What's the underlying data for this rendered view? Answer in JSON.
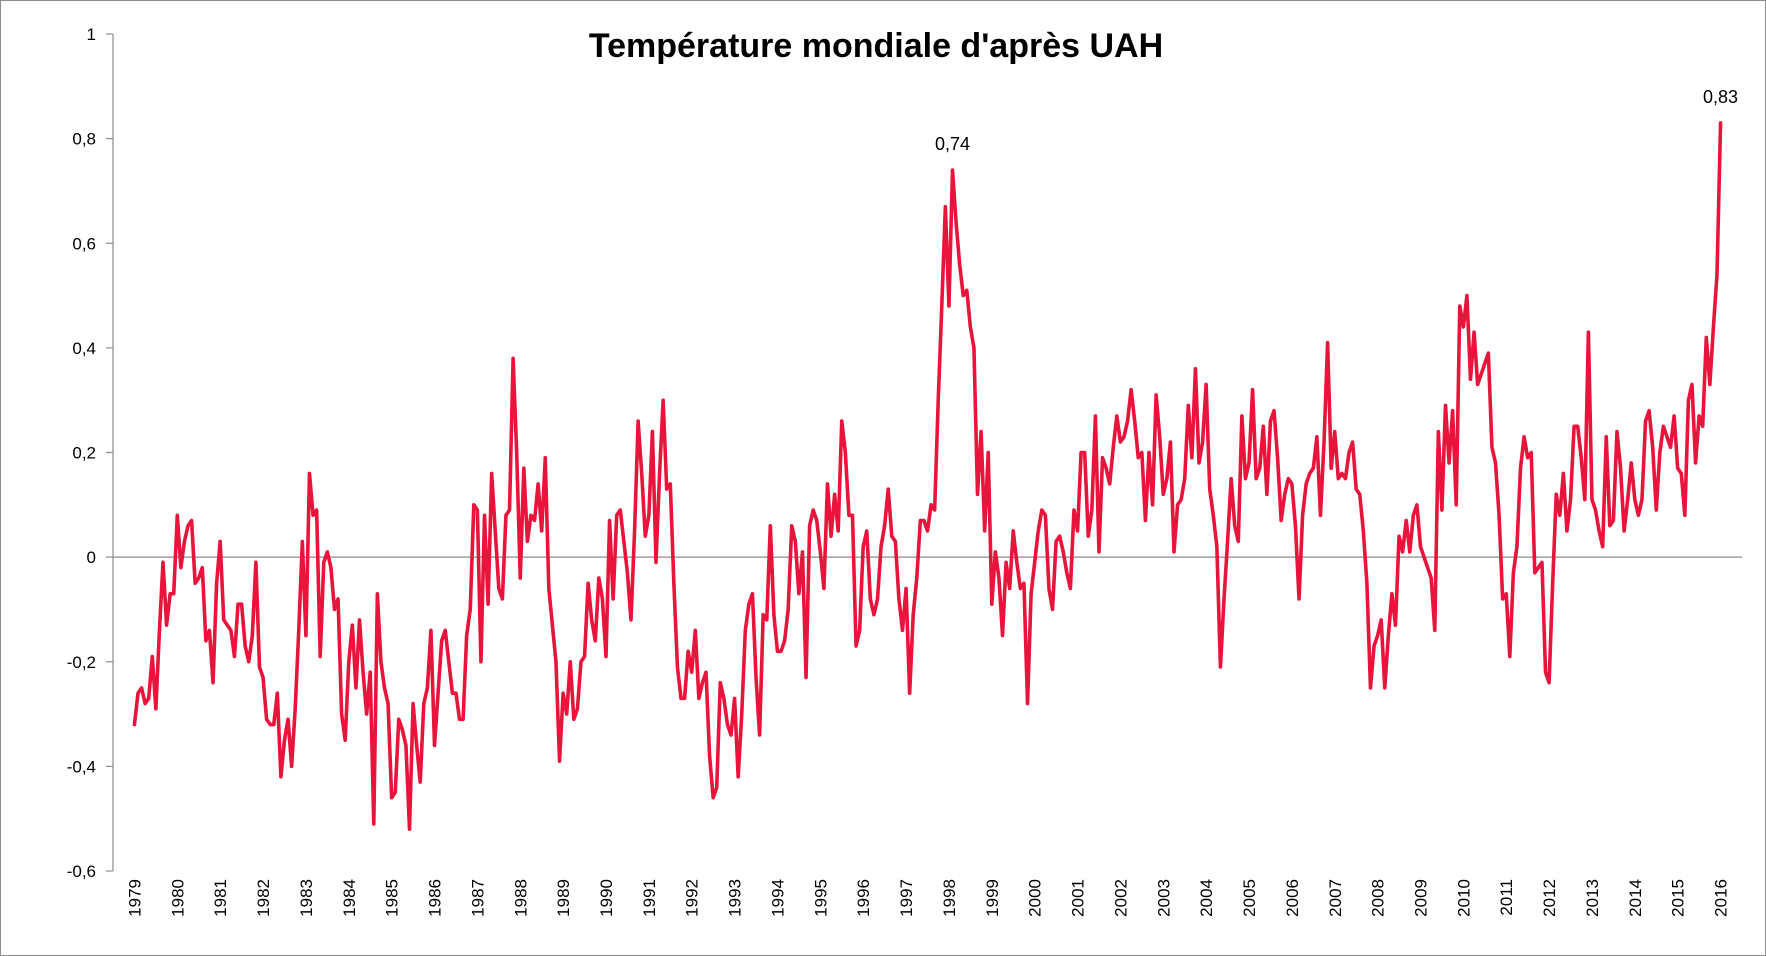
{
  "chart_data": {
    "type": "line",
    "title": "Température mondiale d'après UAH",
    "xlabel": "",
    "ylabel": "",
    "ylim": [
      -0.6,
      1
    ],
    "y_ticks": [
      "1",
      "0,8",
      "0,6",
      "0,4",
      "0,2",
      "0",
      "-0,2",
      "-0,4",
      "-0,6"
    ],
    "x_ticks": [
      "1979",
      "1980",
      "1981",
      "1982",
      "1983",
      "1984",
      "1985",
      "1986",
      "1987",
      "1988",
      "1989",
      "1990",
      "1991",
      "1992",
      "1993",
      "1994",
      "1995",
      "1996",
      "1997",
      "1998",
      "1999",
      "2000",
      "2001",
      "2002",
      "2003",
      "2004",
      "2005",
      "2006",
      "2007",
      "2008",
      "2009",
      "2010",
      "2011",
      "2012",
      "2013",
      "2014",
      "2015",
      "2016"
    ],
    "x_start_year": 1979,
    "grid": false,
    "legend": "none",
    "line_color": "#e8143c",
    "series": [
      {
        "values": [
          -0.32,
          -0.26,
          -0.25,
          -0.28,
          -0.27,
          -0.19,
          -0.29,
          -0.14,
          -0.01,
          -0.13,
          -0.07,
          -0.07,
          0.08,
          -0.02,
          0.03,
          0.06,
          0.07,
          -0.05,
          -0.04,
          -0.02,
          -0.16,
          -0.14,
          -0.24,
          -0.05,
          0.03,
          -0.12,
          -0.13,
          -0.14,
          -0.19,
          -0.09,
          -0.09,
          -0.17,
          -0.2,
          -0.15,
          -0.01,
          -0.21,
          -0.23,
          -0.31,
          -0.32,
          -0.32,
          -0.26,
          -0.42,
          -0.35,
          -0.31,
          -0.4,
          -0.29,
          -0.14,
          0.03,
          -0.15,
          0.16,
          0.08,
          0.09,
          -0.19,
          -0.01,
          0.01,
          -0.02,
          -0.1,
          -0.08,
          -0.3,
          -0.35,
          -0.2,
          -0.13,
          -0.25,
          -0.12,
          -0.22,
          -0.3,
          -0.22,
          -0.51,
          -0.07,
          -0.2,
          -0.25,
          -0.28,
          -0.46,
          -0.45,
          -0.31,
          -0.33,
          -0.36,
          -0.52,
          -0.28,
          -0.36,
          -0.43,
          -0.28,
          -0.25,
          -0.14,
          -0.36,
          -0.26,
          -0.16,
          -0.14,
          -0.2,
          -0.26,
          -0.26,
          -0.31,
          -0.31,
          -0.15,
          -0.1,
          0.1,
          0.09,
          -0.2,
          0.08,
          -0.09,
          0.16,
          0.05,
          -0.06,
          -0.08,
          0.08,
          0.09,
          0.38,
          0.2,
          -0.04,
          0.17,
          0.03,
          0.08,
          0.07,
          0.14,
          0.05,
          0.19,
          -0.06,
          -0.13,
          -0.2,
          -0.39,
          -0.26,
          -0.3,
          -0.2,
          -0.31,
          -0.29,
          -0.2,
          -0.19,
          -0.05,
          -0.12,
          -0.16,
          -0.04,
          -0.08,
          -0.19,
          0.07,
          -0.08,
          0.08,
          0.09,
          0.03,
          -0.03,
          -0.12,
          0.05,
          0.26,
          0.16,
          0.04,
          0.08,
          0.24,
          -0.01,
          0.16,
          0.3,
          0.13,
          0.14,
          -0.05,
          -0.21,
          -0.27,
          -0.27,
          -0.18,
          -0.22,
          -0.14,
          -0.27,
          -0.24,
          -0.22,
          -0.38,
          -0.46,
          -0.44,
          -0.24,
          -0.27,
          -0.32,
          -0.34,
          -0.27,
          -0.42,
          -0.3,
          -0.14,
          -0.09,
          -0.07,
          -0.23,
          -0.34,
          -0.11,
          -0.12,
          0.06,
          -0.11,
          -0.18,
          -0.18,
          -0.16,
          -0.1,
          0.06,
          0.03,
          -0.07,
          0.01,
          -0.23,
          0.06,
          0.09,
          0.07,
          0.01,
          -0.06,
          0.14,
          0.04,
          0.12,
          0.05,
          0.26,
          0.2,
          0.08,
          0.08,
          -0.17,
          -0.14,
          0.02,
          0.05,
          -0.08,
          -0.11,
          -0.08,
          0.02,
          0.06,
          0.13,
          0.04,
          0.03,
          -0.08,
          -0.14,
          -0.06,
          -0.26,
          -0.11,
          -0.04,
          0.07,
          0.07,
          0.05,
          0.1,
          0.09,
          0.3,
          0.48,
          0.67,
          0.48,
          0.74,
          0.64,
          0.56,
          0.5,
          0.51,
          0.44,
          0.4,
          0.12,
          0.24,
          0.05,
          0.2,
          -0.09,
          0.01,
          -0.04,
          -0.15,
          -0.01,
          -0.06,
          0.05,
          -0.01,
          -0.06,
          -0.05,
          -0.28,
          -0.07,
          -0.01,
          0.05,
          0.09,
          0.08,
          -0.06,
          -0.1,
          0.03,
          0.04,
          0.01,
          -0.03,
          -0.06,
          0.09,
          0.05,
          0.2,
          0.2,
          0.04,
          0.09,
          0.27,
          0.01,
          0.19,
          0.17,
          0.14,
          0.21,
          0.27,
          0.22,
          0.23,
          0.26,
          0.32,
          0.26,
          0.19,
          0.2,
          0.07,
          0.2,
          0.1,
          0.31,
          0.23,
          0.12,
          0.15,
          0.22,
          0.01,
          0.1,
          0.11,
          0.15,
          0.29,
          0.19,
          0.36,
          0.18,
          0.22,
          0.33,
          0.13,
          0.08,
          0.02,
          -0.21,
          -0.08,
          0.03,
          0.15,
          0.06,
          0.03,
          0.27,
          0.15,
          0.18,
          0.32,
          0.15,
          0.17,
          0.25,
          0.12,
          0.26,
          0.28,
          0.19,
          0.07,
          0.12,
          0.15,
          0.14,
          0.06,
          -0.08,
          0.08,
          0.14,
          0.16,
          0.17,
          0.23,
          0.08,
          0.22,
          0.41,
          0.17,
          0.24,
          0.15,
          0.16,
          0.15,
          0.2,
          0.22,
          0.13,
          0.12,
          0.05,
          -0.05,
          -0.25,
          -0.17,
          -0.15,
          -0.12,
          -0.25,
          -0.15,
          -0.07,
          -0.13,
          0.04,
          0.01,
          0.07,
          0.01,
          0.08,
          0.1,
          0.02,
          0.0,
          -0.02,
          -0.04,
          -0.14,
          0.24,
          0.09,
          0.29,
          0.18,
          0.28,
          0.1,
          0.48,
          0.44,
          0.5,
          0.34,
          0.43,
          0.33,
          0.35,
          0.37,
          0.39,
          0.21,
          0.18,
          0.08,
          -0.08,
          -0.07,
          -0.19,
          -0.03,
          0.02,
          0.17,
          0.23,
          0.19,
          0.2,
          -0.03,
          -0.02,
          -0.01,
          -0.22,
          -0.24,
          -0.05,
          0.12,
          0.08,
          0.16,
          0.05,
          0.11,
          0.25,
          0.25,
          0.19,
          0.11,
          0.43,
          0.11,
          0.09,
          0.05,
          0.02,
          0.23,
          0.06,
          0.07,
          0.24,
          0.17,
          0.05,
          0.11,
          0.18,
          0.11,
          0.08,
          0.11,
          0.26,
          0.28,
          0.21,
          0.09,
          0.2,
          0.25,
          0.23,
          0.21,
          0.27,
          0.17,
          0.16,
          0.08,
          0.3,
          0.33,
          0.18,
          0.27,
          0.25,
          0.42,
          0.33,
          0.44,
          0.54,
          0.83
        ]
      }
    ],
    "annotations": [
      {
        "text": "0,74",
        "x": 1998.083,
        "y": 0.74
      },
      {
        "text": "0,83",
        "x": 2016.0,
        "y": 0.83
      }
    ]
  }
}
